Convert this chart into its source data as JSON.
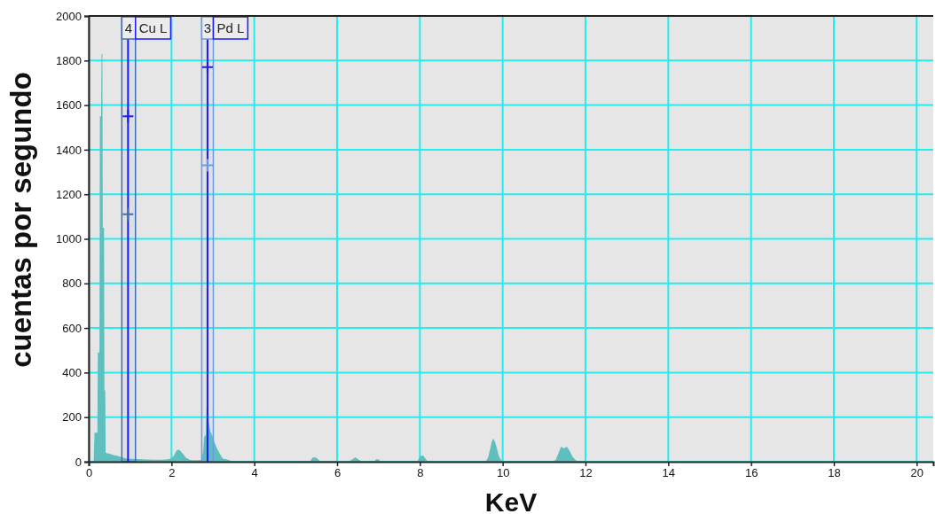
{
  "chart_data": {
    "type": "area",
    "xlabel": "KeV",
    "ylabel": "cuentas por segundo",
    "xlim": [
      0,
      20.4
    ],
    "xticks": [
      0,
      2,
      4,
      6,
      8,
      10,
      12,
      14,
      16,
      18,
      20
    ],
    "ylim": [
      0,
      2000
    ],
    "yticks": [
      0,
      200,
      400,
      600,
      800,
      1000,
      1200,
      1400,
      1600,
      1800,
      2000
    ],
    "grid": true,
    "series": [
      {
        "color": "#5fbfbf",
        "x": [
          0.12,
          0.14,
          0.21,
          0.22,
          0.26,
          0.27,
          0.3,
          0.31,
          0.33,
          0.34,
          0.37,
          0.38,
          0.4,
          0.41,
          0.5,
          0.6,
          0.7,
          0.8,
          0.9,
          1.0,
          1.2,
          1.4,
          1.6,
          1.8,
          1.95,
          2.05,
          2.12,
          2.17,
          2.22,
          2.28,
          2.35,
          2.45,
          2.6,
          2.72,
          2.76,
          2.79,
          2.83,
          2.85,
          2.88,
          2.9,
          2.94,
          2.98,
          3.03,
          3.1,
          3.17,
          3.24,
          3.35,
          3.45,
          4.0,
          5.0,
          5.35,
          5.42,
          5.5,
          5.58,
          6.3,
          6.38,
          6.44,
          6.5,
          6.58,
          6.9,
          6.95,
          7.0,
          7.05,
          7.95,
          8.0,
          8.08,
          8.13,
          8.18,
          9.6,
          9.65,
          9.7,
          9.74,
          9.78,
          9.82,
          9.86,
          9.9,
          9.95,
          10.0,
          11.2,
          11.28,
          11.34,
          11.41,
          11.48,
          11.55,
          11.62,
          11.69,
          11.76,
          11.82,
          12.0
        ],
        "values": [
          0,
          130,
          130,
          490,
          490,
          1550,
          1550,
          1830,
          1830,
          1050,
          1050,
          320,
          320,
          40,
          36,
          30,
          26,
          20,
          15,
          13,
          12,
          10,
          9,
          9,
          12,
          25,
          50,
          55,
          48,
          35,
          18,
          8,
          7,
          8,
          40,
          110,
          120,
          260,
          260,
          180,
          135,
          120,
          90,
          60,
          35,
          14,
          10,
          3,
          3,
          3,
          4,
          20,
          18,
          4,
          3,
          12,
          20,
          12,
          3,
          3,
          12,
          10,
          3,
          3,
          25,
          28,
          15,
          3,
          3,
          20,
          60,
          92,
          103,
          85,
          60,
          30,
          10,
          2,
          2,
          8,
          35,
          68,
          60,
          68,
          48,
          22,
          8,
          2,
          0
        ]
      },
      {
        "type": "scatter",
        "marker": "cross",
        "color": "#1a1aff",
        "x": [
          0.95,
          2.87
        ],
        "values": [
          1550,
          1770
        ]
      },
      {
        "type": "scatter",
        "marker": "cross",
        "colors": [
          "#3f6fb5",
          "#6a9be0"
        ],
        "x": [
          0.95,
          2.87
        ],
        "values": [
          1110,
          1330
        ]
      }
    ],
    "bands": [
      {
        "axis": "x",
        "from": 0.8,
        "to": 1.13,
        "label": "4",
        "color": "#3f6fb5"
      },
      {
        "axis": "x",
        "from": 2.73,
        "to": 3.01,
        "label": "3",
        "color": "#6a9be0"
      }
    ],
    "ref_lines": [
      {
        "axis": "x",
        "value": 0.95,
        "label": "Cu L",
        "color": "#1a1aff"
      },
      {
        "axis": "x",
        "value": 2.87,
        "label": "Pd L",
        "color": "#1a1aff"
      }
    ]
  }
}
